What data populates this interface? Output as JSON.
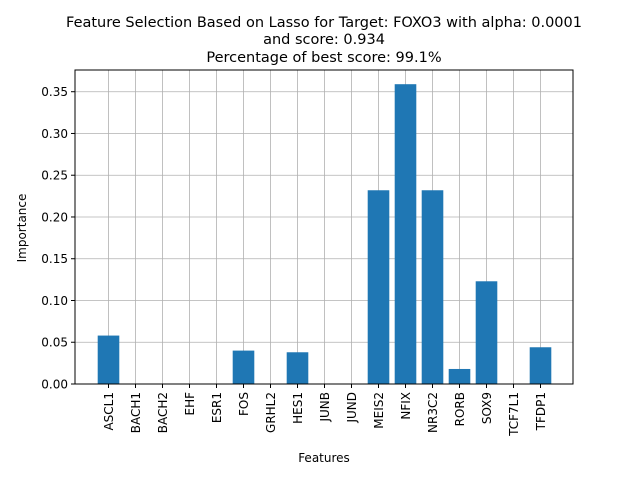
{
  "chart_data": {
    "type": "bar",
    "title_lines": [
      "Feature Selection Based on Lasso for Target: FOXO3 with alpha: 0.0001",
      "and score: 0.934",
      "Percentage of best score: 99.1%"
    ],
    "xlabel": "Features",
    "ylabel": "Importance",
    "categories": [
      "ASCL1",
      "BACH1",
      "BACH2",
      "EHF",
      "ESR1",
      "FOS",
      "GRHL2",
      "HES1",
      "JUNB",
      "JUND",
      "MEIS2",
      "NFIX",
      "NR3C2",
      "RORB",
      "SOX9",
      "TCF7L1",
      "TFDP1"
    ],
    "values": [
      0.058,
      0,
      0,
      0,
      0,
      0.04,
      0,
      0.038,
      0,
      0,
      0.232,
      0.359,
      0.232,
      0.018,
      0.123,
      0,
      0.044
    ],
    "ylim": [
      0,
      0.376
    ],
    "yticks": [
      0.0,
      0.05,
      0.1,
      0.15,
      0.2,
      0.25,
      0.3,
      0.35
    ],
    "ytick_labels": [
      "0.00",
      "0.05",
      "0.10",
      "0.15",
      "0.20",
      "0.25",
      "0.30",
      "0.35"
    ],
    "grid": true,
    "bar_color": "#1f77b4"
  }
}
